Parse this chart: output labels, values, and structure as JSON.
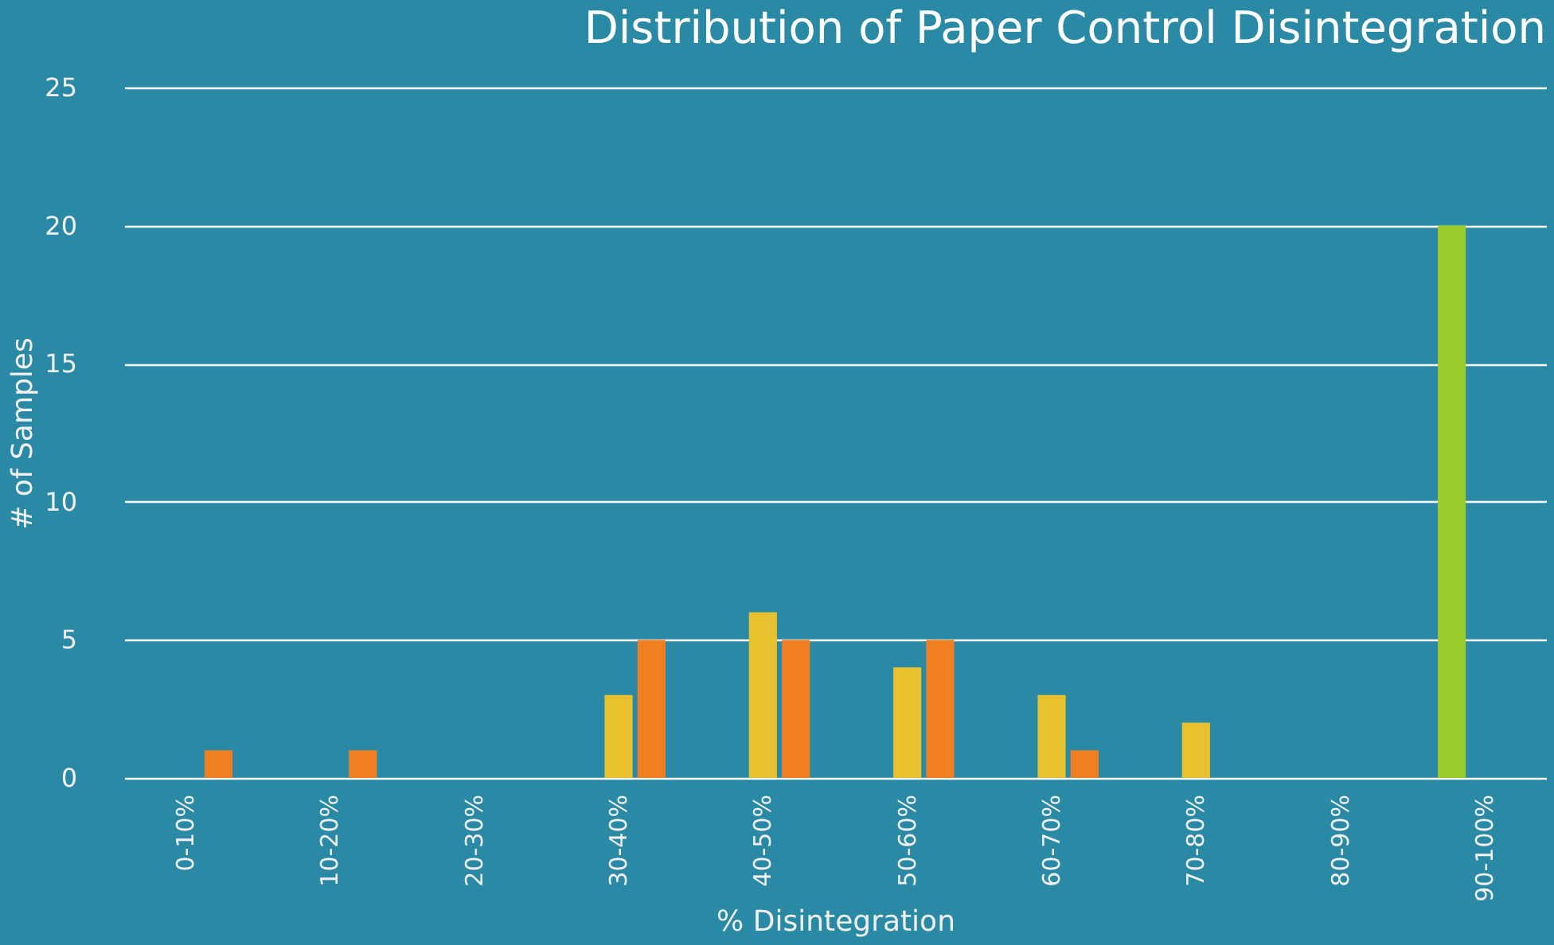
{
  "chart_data": {
    "type": "bar",
    "title": "Distribution of Paper Control Disintegration",
    "xlabel": "% Disintegration",
    "ylabel": "# of Samples",
    "categories": [
      "0-10%",
      "10-20%",
      "20-30%",
      "30-40%",
      "40-50%",
      "50-60%",
      "60-70%",
      "70-80%",
      "80-90%",
      "90-100%"
    ],
    "series": [
      {
        "color": "#9ccb2c",
        "values": [
          0,
          0,
          0,
          0,
          0,
          0,
          0,
          0,
          0,
          20
        ]
      },
      {
        "color": "#e8c22e",
        "values": [
          0,
          0,
          0,
          3,
          6,
          4,
          3,
          2,
          0,
          0
        ]
      },
      {
        "color": "#f07f22",
        "values": [
          1,
          1,
          0,
          5,
          5,
          5,
          1,
          0,
          0,
          0
        ]
      }
    ],
    "ylim": [
      0,
      25
    ],
    "yticks": [
      0,
      5,
      10,
      15,
      20,
      25
    ],
    "grid": "y"
  }
}
